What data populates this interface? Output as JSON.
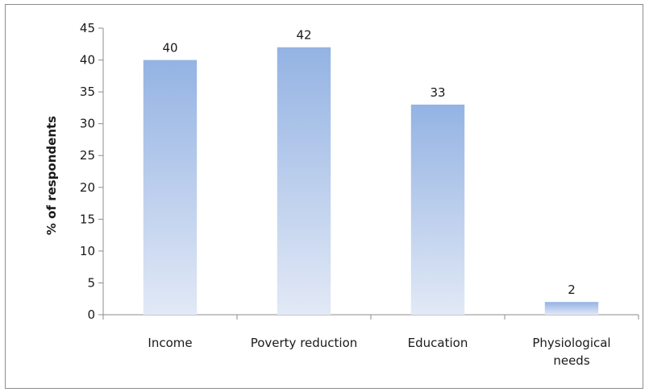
{
  "chart_data": {
    "type": "bar",
    "title": "",
    "xlabel": "",
    "ylabel": "% of respondents",
    "ylim": [
      0,
      45
    ],
    "yticks": [
      0,
      5,
      10,
      15,
      20,
      25,
      30,
      35,
      40,
      45
    ],
    "categories": [
      [
        "Income"
      ],
      [
        "Poverty reduction"
      ],
      [
        "Education"
      ],
      [
        "Physiological",
        "needs"
      ]
    ],
    "values": [
      40,
      42,
      33,
      2
    ],
    "data_labels": [
      "40",
      "42",
      "33",
      "2"
    ],
    "grid": false,
    "legend": "none",
    "colors": {
      "bar_top": "#94b3e3",
      "bar_bottom": "#e2e9f6",
      "axis": "#8c8c8c",
      "text": "#1a1a1a"
    }
  }
}
